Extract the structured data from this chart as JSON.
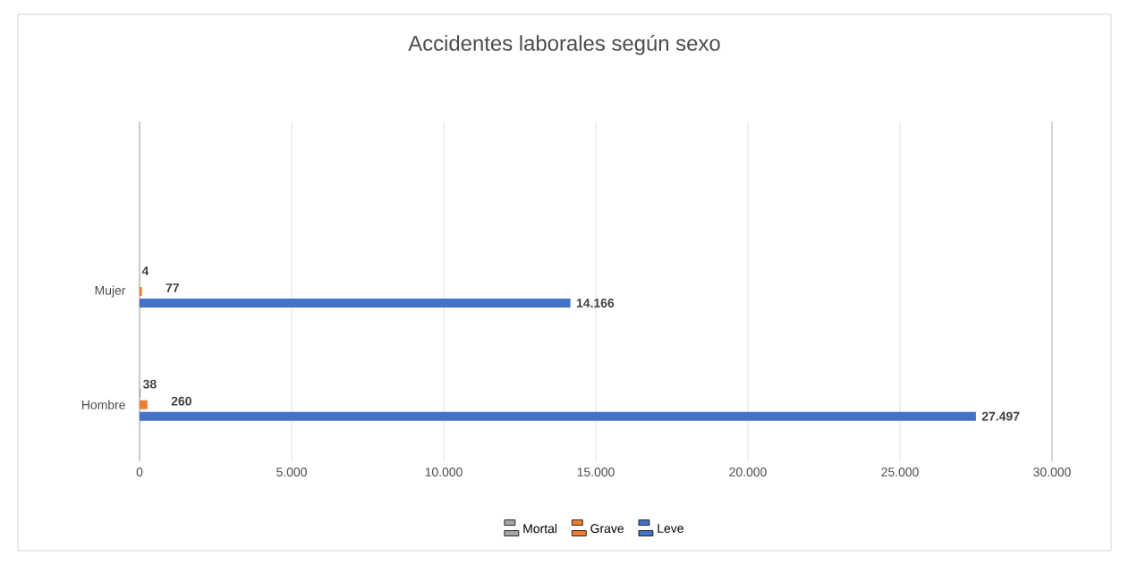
{
  "chart_data": {
    "type": "bar",
    "orientation": "horizontal",
    "title": "Accidentes laborales según sexo",
    "categories": [
      "Mujer",
      "Hombre"
    ],
    "series": [
      {
        "name": "Mortal",
        "color": "#a5a5a5",
        "values": [
          4,
          38
        ],
        "value_labels": [
          "4",
          "38"
        ]
      },
      {
        "name": "Grave",
        "color": "#ed7d31",
        "values": [
          77,
          260
        ],
        "value_labels": [
          "77",
          "260"
        ]
      },
      {
        "name": "Leve",
        "color": "#4472c4",
        "values": [
          14166,
          27497
        ],
        "value_labels": [
          "14.166",
          "27.497"
        ]
      }
    ],
    "xlim": [
      0,
      30000
    ],
    "xticks": [
      {
        "value": 0,
        "label": "0"
      },
      {
        "value": 5000,
        "label": "5.000"
      },
      {
        "value": 10000,
        "label": "10.000"
      },
      {
        "value": 15000,
        "label": "15.000"
      },
      {
        "value": 20000,
        "label": "20.000"
      },
      {
        "value": 25000,
        "label": "25.000"
      },
      {
        "value": 30000,
        "label": "30.000"
      }
    ],
    "grid": "x",
    "legend": "bottom"
  }
}
